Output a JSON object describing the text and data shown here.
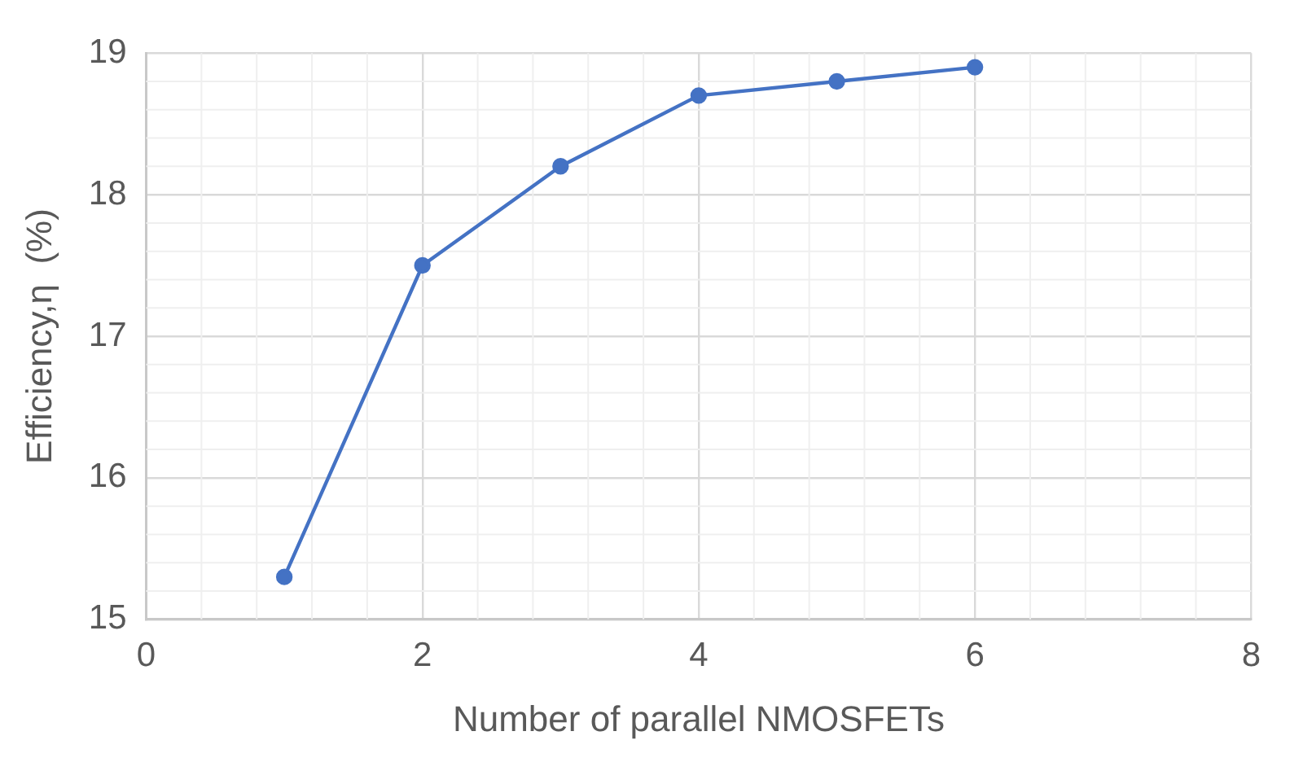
{
  "chart_data": {
    "type": "line",
    "xlabel": "Number of parallel NMOSFETs",
    "ylabel": "Efficiency,η  (%)",
    "x": [
      1,
      2,
      3,
      4,
      5,
      6
    ],
    "series": [
      {
        "color": "#4472c4",
        "values": [
          15.3,
          17.5,
          18.2,
          18.7,
          18.8,
          18.9
        ]
      }
    ],
    "xlim": [
      0,
      8
    ],
    "xticks": [
      0,
      2,
      4,
      6,
      8
    ],
    "ylim": [
      15,
      19
    ],
    "yticks": [
      15,
      16,
      17,
      18,
      19
    ],
    "grid": true,
    "legend": false,
    "marker": "circle",
    "line_style": "solid"
  }
}
